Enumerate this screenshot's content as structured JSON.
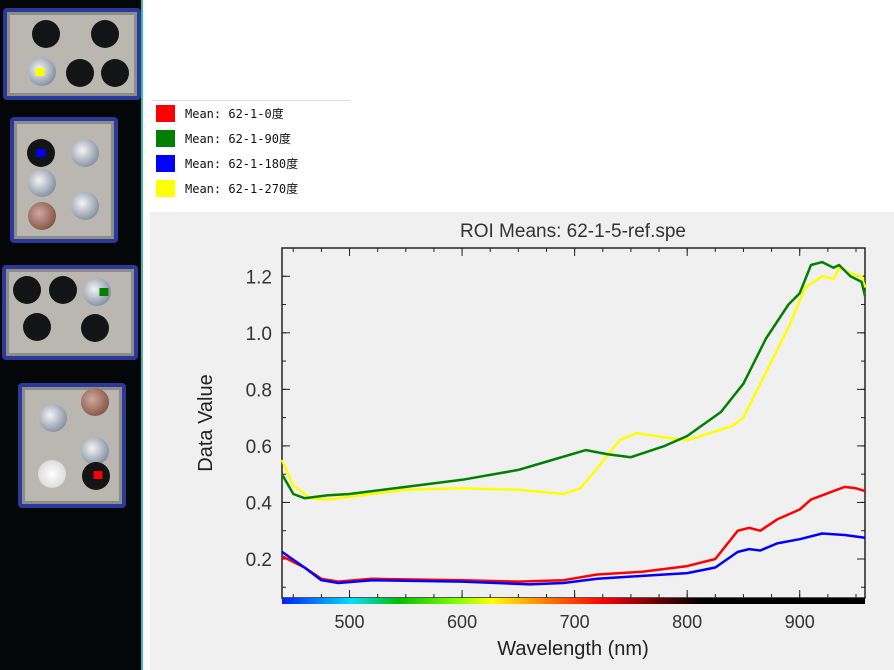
{
  "legend": [
    {
      "label": "Mean: 62-1-0度",
      "color": "#ff0000"
    },
    {
      "label": "Mean: 62-1-90度",
      "color": "#008000"
    },
    {
      "label": "Mean: 62-1-180度",
      "color": "#0000ff"
    },
    {
      "label": "Mean: 62-1-270度",
      "color": "#ffff00"
    }
  ],
  "chart_data": {
    "type": "line",
    "title": "ROI Means: 62-1-5-ref.spe",
    "xlabel": "Wavelength (nm)",
    "ylabel": "Data Value",
    "xlim": [
      440,
      958
    ],
    "ylim": [
      0.062,
      1.3
    ],
    "xticks": [
      500,
      600,
      700,
      800,
      900
    ],
    "yticks": [
      0.2,
      0.4,
      0.6,
      0.8,
      1.0,
      1.2
    ],
    "xtick_labels": [
      "500",
      "600",
      "700",
      "800",
      "900"
    ],
    "ytick_labels": [
      "0.2",
      "0.4",
      "0.6",
      "0.8",
      "1.0",
      "1.2"
    ],
    "series": [
      {
        "name": "Mean: 62-1-0度",
        "color": "#ff0000",
        "x": [
          440,
          460,
          475,
          490,
          520,
          600,
          650,
          690,
          720,
          760,
          800,
          825,
          845,
          855,
          865,
          880,
          900,
          910,
          930,
          940,
          950,
          958
        ],
        "y": [
          0.21,
          0.17,
          0.13,
          0.12,
          0.13,
          0.125,
          0.12,
          0.125,
          0.145,
          0.155,
          0.175,
          0.2,
          0.3,
          0.31,
          0.3,
          0.34,
          0.375,
          0.41,
          0.44,
          0.455,
          0.45,
          0.44
        ]
      },
      {
        "name": "Mean: 62-1-90度",
        "color": "#008000",
        "x": [
          440,
          450,
          460,
          480,
          500,
          550,
          600,
          650,
          680,
          710,
          730,
          750,
          780,
          800,
          830,
          850,
          870,
          890,
          900,
          910,
          920,
          930,
          935,
          945,
          955,
          958
        ],
        "y": [
          0.5,
          0.43,
          0.415,
          0.425,
          0.43,
          0.455,
          0.48,
          0.515,
          0.55,
          0.585,
          0.57,
          0.56,
          0.6,
          0.635,
          0.72,
          0.82,
          0.98,
          1.1,
          1.14,
          1.24,
          1.25,
          1.23,
          1.24,
          1.2,
          1.18,
          1.13
        ]
      },
      {
        "name": "Mean: 62-1-180度",
        "color": "#0000ff",
        "x": [
          440,
          460,
          475,
          490,
          520,
          600,
          660,
          690,
          720,
          760,
          800,
          825,
          845,
          855,
          865,
          880,
          900,
          920,
          940,
          958
        ],
        "y": [
          0.225,
          0.17,
          0.125,
          0.115,
          0.125,
          0.12,
          0.11,
          0.115,
          0.13,
          0.14,
          0.15,
          0.17,
          0.225,
          0.235,
          0.23,
          0.255,
          0.27,
          0.29,
          0.285,
          0.275
        ]
      },
      {
        "name": "Mean: 62-1-270度",
        "color": "#ffff00",
        "x": [
          440,
          450,
          465,
          480,
          500,
          550,
          600,
          650,
          690,
          705,
          720,
          740,
          755,
          780,
          800,
          820,
          840,
          850,
          870,
          890,
          905,
          920,
          930,
          935,
          945,
          955,
          958
        ],
        "y": [
          0.55,
          0.46,
          0.415,
          0.41,
          0.42,
          0.445,
          0.45,
          0.445,
          0.43,
          0.45,
          0.52,
          0.62,
          0.645,
          0.63,
          0.62,
          0.645,
          0.67,
          0.7,
          0.86,
          1.02,
          1.16,
          1.2,
          1.19,
          1.23,
          1.21,
          1.2,
          1.16
        ]
      }
    ]
  }
}
